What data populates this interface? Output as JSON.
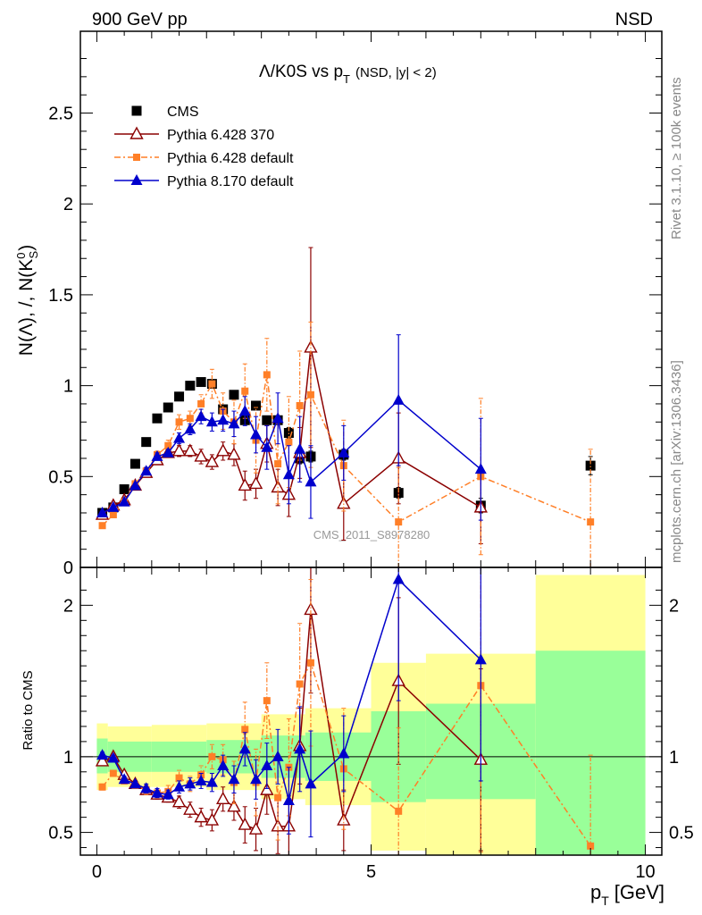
{
  "header": {
    "left_label": "900 GeV pp",
    "right_label": "NSD"
  },
  "side_labels": {
    "rivet": "Rivet 3.1.10, ≥ 100k events",
    "mcplots": "mcplots.cern.ch [arXiv:1306.3436]"
  },
  "watermark": "CMS_2011_S8978280",
  "chart_data": [
    {
      "type": "scatter",
      "panel": "main",
      "title_main": "Λ/K0S vs p",
      "title_sub": "T",
      "title_extra": "(NSD, |y| < 2)",
      "ylabel_text": "N(Λ), /, N(K",
      "ylabel_sup": "0",
      "ylabel_sub": "S",
      "ylabel_close": ")",
      "xlim": [
        -0.3,
        10.3
      ],
      "ylim": [
        0,
        2.95
      ],
      "yticks": [
        {
          "v": 0,
          "label": "0"
        },
        {
          "v": 0.5,
          "label": "0.5"
        },
        {
          "v": 1,
          "label": "1"
        },
        {
          "v": 1.5,
          "label": "1.5"
        },
        {
          "v": 2,
          "label": "2"
        },
        {
          "v": 2.5,
          "label": "2.5"
        }
      ],
      "legend_position": "top-left",
      "series": [
        {
          "name": "CMS",
          "color": "#000000",
          "marker": "square-filled",
          "line": "none",
          "x": [
            0.1,
            0.3,
            0.5,
            0.7,
            0.9,
            1.1,
            1.3,
            1.5,
            1.7,
            1.9,
            2.1,
            2.3,
            2.5,
            2.7,
            2.9,
            3.1,
            3.3,
            3.5,
            3.7,
            3.9,
            4.5,
            5.5,
            7.0,
            9.0
          ],
          "y": [
            0.3,
            0.33,
            0.43,
            0.57,
            0.69,
            0.82,
            0.88,
            0.94,
            1.0,
            1.02,
            1.01,
            0.87,
            0.95,
            0.81,
            0.89,
            0.81,
            0.81,
            0.74,
            0.6,
            0.61,
            0.62,
            0.41,
            0.34,
            0.56
          ],
          "yerr": [
            0.01,
            0.01,
            0.01,
            0.01,
            0.01,
            0.01,
            0.01,
            0.01,
            0.01,
            0.01,
            0.01,
            0.01,
            0.02,
            0.02,
            0.02,
            0.02,
            0.02,
            0.03,
            0.03,
            0.03,
            0.03,
            0.03,
            0.04,
            0.05
          ]
        },
        {
          "name": "Pythia 6.428 370",
          "color": "#8b0000",
          "marker": "triangle-open",
          "line": "solid",
          "x": [
            0.1,
            0.3,
            0.5,
            0.7,
            0.9,
            1.1,
            1.3,
            1.5,
            1.7,
            1.9,
            2.1,
            2.3,
            2.5,
            2.7,
            2.9,
            3.1,
            3.3,
            3.5,
            3.7,
            3.9,
            4.5,
            5.5,
            7.0
          ],
          "y": [
            0.29,
            0.34,
            0.37,
            0.45,
            0.52,
            0.59,
            0.63,
            0.64,
            0.64,
            0.61,
            0.58,
            0.64,
            0.62,
            0.45,
            0.46,
            0.68,
            0.44,
            0.4,
            0.63,
            1.21,
            0.35,
            0.6,
            0.33
          ],
          "yerr": [
            0.01,
            0.01,
            0.01,
            0.01,
            0.02,
            0.02,
            0.02,
            0.03,
            0.03,
            0.04,
            0.04,
            0.05,
            0.06,
            0.08,
            0.08,
            0.1,
            0.1,
            0.12,
            0.14,
            0.55,
            0.2,
            0.25,
            0.2
          ]
        },
        {
          "name": "Pythia 6.428 default",
          "color": "#ff7f27",
          "marker": "square-filled-small",
          "line": "dashdot",
          "x": [
            0.1,
            0.3,
            0.5,
            0.7,
            0.9,
            1.1,
            1.3,
            1.5,
            1.7,
            1.9,
            2.1,
            2.3,
            2.5,
            2.7,
            2.9,
            3.1,
            3.3,
            3.5,
            3.7,
            3.9,
            4.5,
            5.5,
            7.0,
            9.0
          ],
          "y": [
            0.23,
            0.29,
            0.36,
            0.46,
            0.53,
            0.62,
            0.67,
            0.8,
            0.82,
            0.9,
            1.01,
            0.86,
            0.8,
            0.97,
            0.7,
            1.06,
            0.57,
            0.69,
            0.89,
            0.95,
            0.56,
            0.25,
            0.5,
            0.25
          ],
          "yerr": [
            0.01,
            0.01,
            0.01,
            0.01,
            0.02,
            0.02,
            0.03,
            0.04,
            0.04,
            0.05,
            0.08,
            0.1,
            0.12,
            0.15,
            0.18,
            0.2,
            0.22,
            0.25,
            0.3,
            0.4,
            0.25,
            0.3,
            0.43,
            0.4
          ]
        },
        {
          "name": "Pythia 8.170 default",
          "color": "#0000cc",
          "marker": "triangle-filled",
          "line": "solid",
          "x": [
            0.1,
            0.3,
            0.5,
            0.7,
            0.9,
            1.1,
            1.3,
            1.5,
            1.7,
            1.9,
            2.1,
            2.3,
            2.5,
            2.7,
            2.9,
            3.1,
            3.3,
            3.5,
            3.7,
            3.9,
            4.5,
            5.5,
            7.0
          ],
          "y": [
            0.3,
            0.33,
            0.36,
            0.45,
            0.53,
            0.61,
            0.63,
            0.71,
            0.76,
            0.83,
            0.8,
            0.81,
            0.79,
            0.86,
            0.73,
            0.66,
            0.82,
            0.51,
            0.65,
            0.47,
            0.63,
            0.92,
            0.54
          ],
          "yerr": [
            0.01,
            0.01,
            0.01,
            0.01,
            0.02,
            0.02,
            0.02,
            0.03,
            0.03,
            0.04,
            0.05,
            0.06,
            0.07,
            0.08,
            0.1,
            0.12,
            0.14,
            0.16,
            0.18,
            0.2,
            0.15,
            0.36,
            0.28
          ]
        }
      ]
    },
    {
      "type": "scatter",
      "panel": "ratio",
      "ylabel": "Ratio to CMS",
      "xlabel_main": "p",
      "xlabel_sub": "T",
      "xlabel_unit": "[GeV]",
      "xlim": [
        -0.3,
        10.3
      ],
      "ylim": [
        0.35,
        2.25
      ],
      "xticks": [
        {
          "v": 0,
          "label": "0"
        },
        {
          "v": 5,
          "label": "5"
        },
        {
          "v": 10,
          "label": "10"
        }
      ],
      "yticks": [
        {
          "v": 0.5,
          "label": "0.5"
        },
        {
          "v": 1,
          "label": "1"
        },
        {
          "v": 2,
          "label": "2"
        }
      ],
      "bands": [
        {
          "x0": 0,
          "x1": 0.2,
          "y1lo": 0.89,
          "y1hi": 1.12,
          "y2lo": 0.78,
          "y2hi": 1.22
        },
        {
          "x0": 0.2,
          "x1": 1.0,
          "y1lo": 0.9,
          "y1hi": 1.1,
          "y2lo": 0.8,
          "y2hi": 1.2
        },
        {
          "x0": 1.0,
          "x1": 2.0,
          "y1lo": 0.9,
          "y1hi": 1.1,
          "y2lo": 0.8,
          "y2hi": 1.21
        },
        {
          "x0": 2.0,
          "x1": 3.0,
          "y1lo": 0.89,
          "y1hi": 1.11,
          "y2lo": 0.78,
          "y2hi": 1.22
        },
        {
          "x0": 3.0,
          "x1": 3.8,
          "y1lo": 0.86,
          "y1hi": 1.14,
          "y2lo": 0.72,
          "y2hi": 1.28
        },
        {
          "x0": 3.8,
          "x1": 5.0,
          "y1lo": 0.84,
          "y1hi": 1.16,
          "y2lo": 0.68,
          "y2hi": 1.32
        },
        {
          "x0": 5.0,
          "x1": 6.0,
          "y1lo": 0.7,
          "y1hi": 1.3,
          "y2lo": 0.38,
          "y2hi": 1.62
        },
        {
          "x0": 6.0,
          "x1": 8.0,
          "y1lo": 0.72,
          "y1hi": 1.35,
          "y2lo": 0.35,
          "y2hi": 1.68
        },
        {
          "x0": 8.0,
          "x1": 10.0,
          "y1lo": 0.35,
          "y1hi": 1.7,
          "y2lo": 0.35,
          "y2hi": 2.2
        }
      ],
      "band_colors": {
        "inner": "#99ff99",
        "outer": "#ffff99"
      },
      "series": [
        {
          "name": "Pythia 6.428 370",
          "color": "#8b0000",
          "marker": "triangle-open",
          "line": "solid",
          "x": [
            0.1,
            0.3,
            0.5,
            0.7,
            0.9,
            1.1,
            1.3,
            1.5,
            1.7,
            1.9,
            2.1,
            2.3,
            2.5,
            2.7,
            2.9,
            3.1,
            3.3,
            3.5,
            3.7,
            3.9,
            4.5,
            5.5,
            7.0
          ],
          "y": [
            0.97,
            1.0,
            0.88,
            0.82,
            0.78,
            0.75,
            0.73,
            0.7,
            0.65,
            0.6,
            0.58,
            0.72,
            0.67,
            0.55,
            0.52,
            0.78,
            0.54,
            0.54,
            1.07,
            1.97,
            0.58,
            1.5,
            0.98
          ],
          "yerr": [
            0.02,
            0.02,
            0.02,
            0.02,
            0.03,
            0.03,
            0.03,
            0.04,
            0.05,
            0.06,
            0.07,
            0.08,
            0.09,
            0.12,
            0.14,
            0.16,
            0.18,
            0.2,
            0.25,
            0.55,
            0.2,
            0.55,
            0.6
          ]
        },
        {
          "name": "Pythia 6.428 default",
          "color": "#ff7f27",
          "marker": "square-filled-small",
          "line": "dashdot",
          "x": [
            0.1,
            0.3,
            0.5,
            0.7,
            0.9,
            1.1,
            1.3,
            1.5,
            1.7,
            1.9,
            2.1,
            2.3,
            2.5,
            2.7,
            2.9,
            3.1,
            3.3,
            3.5,
            3.7,
            3.9,
            4.5,
            5.5,
            7.0,
            9.0
          ],
          "y": [
            0.8,
            0.89,
            0.84,
            0.81,
            0.78,
            0.76,
            0.77,
            0.86,
            0.82,
            0.88,
            1.0,
            0.98,
            0.83,
            1.18,
            0.83,
            1.37,
            0.73,
            0.93,
            1.48,
            1.62,
            0.92,
            0.64,
            1.47,
            0.41
          ],
          "yerr": [
            0.02,
            0.02,
            0.02,
            0.02,
            0.03,
            0.03,
            0.04,
            0.05,
            0.05,
            0.06,
            0.08,
            0.1,
            0.14,
            0.18,
            0.22,
            0.25,
            0.28,
            0.32,
            0.4,
            0.55,
            0.4,
            0.55,
            1.1,
            0.6
          ]
        },
        {
          "name": "Pythia 8.170 default",
          "color": "#0000cc",
          "marker": "triangle-filled",
          "line": "solid",
          "x": [
            0.1,
            0.3,
            0.5,
            0.7,
            0.9,
            1.1,
            1.3,
            1.5,
            1.7,
            1.9,
            2.1,
            2.3,
            2.5,
            2.7,
            2.9,
            3.1,
            3.3,
            3.5,
            3.7,
            3.9,
            4.5,
            5.5,
            7.0
          ],
          "y": [
            1.01,
            0.99,
            0.85,
            0.82,
            0.79,
            0.76,
            0.75,
            0.8,
            0.82,
            0.84,
            0.83,
            0.94,
            0.85,
            1.05,
            0.85,
            0.94,
            1.0,
            0.71,
            1.05,
            0.82,
            1.02,
            2.17,
            1.64
          ],
          "yerr": [
            0.02,
            0.02,
            0.02,
            0.02,
            0.03,
            0.03,
            0.03,
            0.04,
            0.04,
            0.05,
            0.06,
            0.07,
            0.09,
            0.11,
            0.13,
            0.15,
            0.18,
            0.22,
            0.28,
            0.35,
            0.25,
            0.8,
            0.8
          ]
        }
      ]
    }
  ]
}
